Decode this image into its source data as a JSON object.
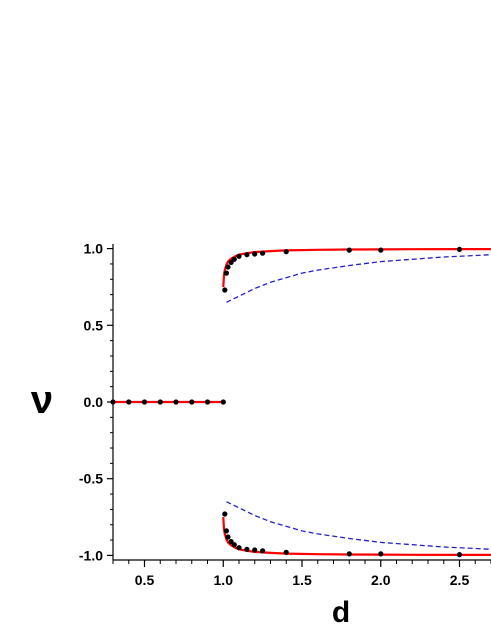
{
  "chart_data": {
    "type": "line",
    "title": "",
    "xlabel": "d",
    "ylabel": "ν",
    "xlim": [
      0.3,
      2.7
    ],
    "ylim": [
      -1.03,
      1.03
    ],
    "x_ticks": [
      "0.5",
      "1.0",
      "1.5",
      "2.0",
      "2.5"
    ],
    "y_ticks": [
      "-1.0",
      "-0.5",
      "0.0",
      "0.5",
      "1.0"
    ],
    "grid": false,
    "legend": "none",
    "colors": {
      "solid": "#ff0000",
      "dashed": "#2222cc",
      "points": "#000000"
    },
    "series": [
      {
        "style": "solid-red",
        "x": [
          0.3,
          1.0
        ],
        "y": [
          0.0,
          0.0
        ]
      },
      {
        "style": "solid-red",
        "x": [
          1.0,
          1.005,
          1.01,
          1.02,
          1.03,
          1.05,
          1.08,
          1.1,
          1.15,
          1.2,
          1.3,
          1.4,
          1.6,
          1.8,
          2.0,
          2.2,
          2.5,
          2.7
        ],
        "y": [
          0.75,
          0.83,
          0.86,
          0.895,
          0.915,
          0.935,
          0.952,
          0.96,
          0.97,
          0.977,
          0.984,
          0.988,
          0.992,
          0.994,
          0.995,
          0.996,
          0.997,
          0.997
        ]
      },
      {
        "style": "solid-red",
        "x": [
          1.0,
          1.005,
          1.01,
          1.02,
          1.03,
          1.05,
          1.08,
          1.1,
          1.15,
          1.2,
          1.3,
          1.4,
          1.6,
          1.8,
          2.0,
          2.2,
          2.5,
          2.7
        ],
        "y": [
          -0.75,
          -0.83,
          -0.86,
          -0.895,
          -0.915,
          -0.935,
          -0.952,
          -0.96,
          -0.97,
          -0.977,
          -0.984,
          -0.988,
          -0.992,
          -0.994,
          -0.995,
          -0.996,
          -0.997,
          -0.997
        ]
      },
      {
        "style": "dashed-blue",
        "x": [
          1.02,
          1.05,
          1.1,
          1.2,
          1.3,
          1.4,
          1.5,
          1.6,
          1.8,
          2.0,
          2.2,
          2.4,
          2.6,
          2.7
        ],
        "y": [
          0.65,
          0.665,
          0.69,
          0.74,
          0.78,
          0.81,
          0.84,
          0.86,
          0.89,
          0.915,
          0.93,
          0.945,
          0.955,
          0.96
        ]
      },
      {
        "style": "dashed-blue",
        "x": [
          1.02,
          1.05,
          1.1,
          1.2,
          1.3,
          1.4,
          1.5,
          1.6,
          1.8,
          2.0,
          2.2,
          2.4,
          2.6,
          2.7
        ],
        "y": [
          -0.65,
          -0.665,
          -0.69,
          -0.74,
          -0.78,
          -0.81,
          -0.84,
          -0.86,
          -0.89,
          -0.915,
          -0.93,
          -0.945,
          -0.955,
          -0.96
        ]
      },
      {
        "style": "points",
        "x": [
          0.3,
          0.4,
          0.5,
          0.6,
          0.7,
          0.8,
          0.9,
          1.0,
          1.01,
          1.02,
          1.03,
          1.05,
          1.07,
          1.1,
          1.15,
          1.2,
          1.25,
          1.4,
          1.8,
          2.0,
          2.5,
          1.01,
          1.02,
          1.03,
          1.05,
          1.07,
          1.1,
          1.15,
          1.2,
          1.25,
          1.4,
          1.8,
          2.0,
          2.5
        ],
        "y": [
          0,
          0,
          0,
          0,
          0,
          0,
          0,
          0,
          0.73,
          0.84,
          0.88,
          0.91,
          0.93,
          0.95,
          0.96,
          0.965,
          0.97,
          0.98,
          0.99,
          0.99,
          0.995,
          -0.73,
          -0.84,
          -0.88,
          -0.91,
          -0.93,
          -0.95,
          -0.96,
          -0.965,
          -0.97,
          -0.98,
          -0.99,
          -0.99,
          -0.995
        ]
      }
    ]
  }
}
